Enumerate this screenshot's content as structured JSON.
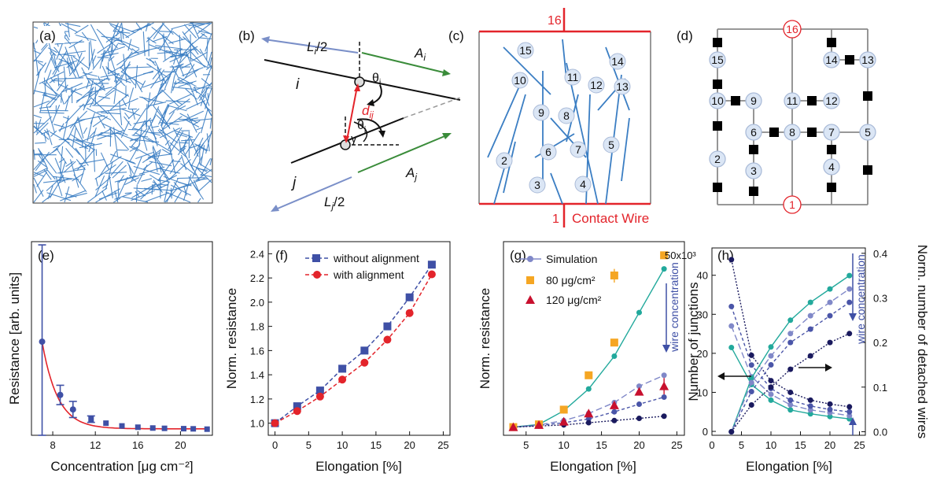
{
  "panels": {
    "a": {
      "label": "(a)"
    },
    "b": {
      "label": "(b)",
      "Li_half": "L",
      "Li_sub": "i",
      "Li_den": "/2",
      "Ai": "A",
      "Ai_sub": "i",
      "i": "i",
      "j": "j",
      "theta_i": "θ",
      "theta_i_sub": "i",
      "theta_j": "θ",
      "theta_j_sub": "j",
      "gamma": "γ",
      "dij": "d",
      "dij_sub": "ij",
      "Aj": "A",
      "Aj_sub": "j",
      "Lj_half": "L",
      "Lj_sub": "j",
      "Lj_den": "/2"
    },
    "c": {
      "label": "(c)",
      "top_node": "16",
      "bottom_node": "1",
      "contact_label": "Contact Wire",
      "nodes": [
        "15",
        "10",
        "11",
        "14",
        "12",
        "13",
        "9",
        "8",
        "6",
        "7",
        "5",
        "2",
        "3",
        "4"
      ]
    },
    "d": {
      "label": "(d)",
      "nodes": [
        "16",
        "15",
        "14",
        "13",
        "10",
        "9",
        "11",
        "12",
        "6",
        "8",
        "7",
        "5",
        "2",
        "3",
        "4",
        "1"
      ]
    }
  },
  "colors": {
    "blue": "#3f50a6",
    "red": "#e3242b",
    "teal": "#22a99c",
    "orange": "#f5a623",
    "wire": "#3b7ec3",
    "darkred": "#c8102e",
    "navy": "#1a1a5e",
    "periwinkle": "#8088c8"
  },
  "chart_data": [
    {
      "type": "scatter",
      "panel": "(e)",
      "xlabel": "Concentration [μg cm⁻²]",
      "ylabel": "Resistance [arb. units]",
      "xlim": [
        6,
        23
      ],
      "xticks": [
        8,
        12,
        16,
        20
      ],
      "points": [
        {
          "x": 7.0,
          "y": 0.58,
          "err": 0.62
        },
        {
          "x": 8.7,
          "y": 0.25,
          "err": 0.06
        },
        {
          "x": 9.9,
          "y": 0.16,
          "err": 0.05
        },
        {
          "x": 11.6,
          "y": 0.1,
          "err": 0.02
        },
        {
          "x": 13.0,
          "y": 0.075
        },
        {
          "x": 14.5,
          "y": 0.058
        },
        {
          "x": 16.0,
          "y": 0.05
        },
        {
          "x": 17.4,
          "y": 0.045
        },
        {
          "x": 18.5,
          "y": 0.043
        },
        {
          "x": 20.3,
          "y": 0.041
        },
        {
          "x": 21.2,
          "y": 0.04
        },
        {
          "x": 22.5,
          "y": 0.038
        }
      ],
      "fit": "exponential decay"
    },
    {
      "type": "line",
      "panel": "(f)",
      "xlabel": "Elongation [%]",
      "ylabel": "Norm. resistance",
      "xlim": [
        -1,
        26
      ],
      "ylim": [
        0.9,
        2.5
      ],
      "xticks": [
        0,
        5,
        10,
        15,
        20,
        25
      ],
      "yticks": [
        1.0,
        1.2,
        1.4,
        1.6,
        1.8,
        2.0,
        2.2,
        2.4
      ],
      "x": [
        0,
        3.3,
        6.7,
        10,
        13.3,
        16.7,
        20,
        23.3
      ],
      "series": [
        {
          "name": "without alignment",
          "marker": "square",
          "values": [
            1.0,
            1.14,
            1.27,
            1.45,
            1.6,
            1.8,
            2.04,
            2.31
          ]
        },
        {
          "name": "with alignment",
          "marker": "circle",
          "values": [
            1.0,
            1.1,
            1.22,
            1.36,
            1.5,
            1.69,
            1.91,
            2.23
          ]
        }
      ]
    },
    {
      "type": "line",
      "panel": "(g)",
      "xlabel": "Elongation [%]",
      "ylabel": "Norm. resistance",
      "xlim": [
        2,
        26
      ],
      "xticks": [
        5,
        10,
        15,
        20,
        25
      ],
      "annotation": "wire concentration",
      "legend": [
        "Simulation",
        "80 μg/cm²",
        "120 μg/cm²"
      ],
      "x": [
        3.3,
        6.7,
        10,
        13.3,
        16.7,
        20,
        23.3
      ],
      "sim": [
        [
          1.0,
          1.05,
          1.3,
          1.7,
          2.3,
          3.1,
          3.9
        ],
        [
          1.0,
          1.04,
          1.12,
          1.25,
          1.45,
          1.75,
          1.95
        ],
        [
          1.0,
          1.03,
          1.08,
          1.15,
          1.28,
          1.42,
          1.55
        ],
        [
          1.0,
          1.02,
          1.04,
          1.08,
          1.12,
          1.16,
          1.2
        ]
      ],
      "exp80": [
        1.0,
        1.05,
        1.32,
        1.95,
        2.55,
        null,
        4.15
      ],
      "exp120": [
        1.0,
        1.04,
        1.1,
        1.25,
        1.4,
        1.65,
        1.75
      ]
    },
    {
      "type": "line",
      "panel": "(h)",
      "xlabel": "Elongation [%]",
      "ylabel": "Number of junctions",
      "ylabel2": "Norm. number of detached wires",
      "ymul": "50x10³",
      "annotation": "wire concentration",
      "xlim": [
        0,
        26
      ],
      "xticks": [
        0,
        5,
        10,
        15,
        20,
        25
      ],
      "yticks": [
        0,
        10,
        20,
        30,
        40
      ],
      "y2ticks": [
        "0.0",
        "0.1",
        "0.2",
        "0.3",
        "0.4"
      ],
      "x": [
        3.3,
        6.7,
        10,
        13.3,
        16.7,
        20,
        23.3
      ],
      "junctions": [
        [
          21.5,
          12,
          8,
          5.5,
          4.5,
          3.8,
          3.2
        ],
        [
          27,
          14,
          9.5,
          6.8,
          5.5,
          4.8,
          4
        ],
        [
          32,
          17,
          11,
          8,
          6.5,
          5.6,
          5
        ],
        [
          44,
          19.5,
          13,
          10,
          8,
          7,
          6.3
        ]
      ],
      "detached": [
        [
          0,
          0.12,
          0.19,
          0.25,
          0.29,
          0.32,
          0.35
        ],
        [
          0,
          0.11,
          0.17,
          0.22,
          0.26,
          0.29,
          0.32
        ],
        [
          0,
          0.09,
          0.15,
          0.2,
          0.23,
          0.26,
          0.29
        ],
        [
          0,
          0.06,
          0.1,
          0.14,
          0.17,
          0.2,
          0.22
        ]
      ]
    }
  ]
}
